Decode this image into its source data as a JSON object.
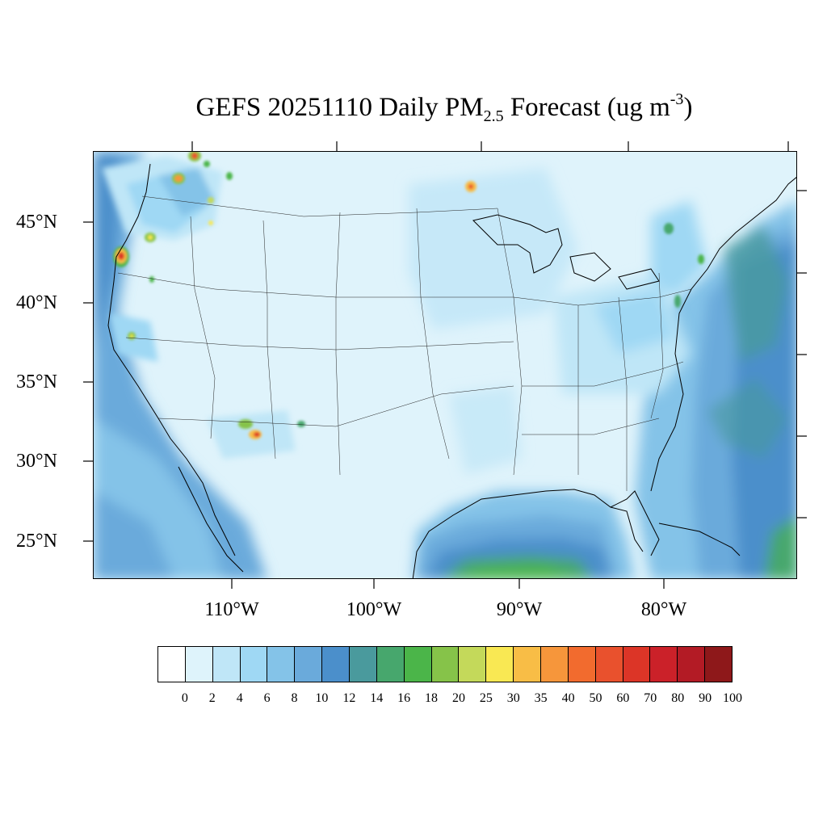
{
  "title": {
    "prefix": "GEFS 20251110 Daily PM",
    "subscript": "2.5",
    "middle": " Forecast (ug m",
    "superscript": "-3",
    "suffix": ")"
  },
  "map": {
    "projection": "Lambert conformal",
    "lat_labels": [
      "45°N",
      "40°N",
      "35°N",
      "30°N",
      "25°N"
    ],
    "lon_labels": [
      "110°W",
      "100°W",
      "90°W",
      "80°W"
    ],
    "hotspots": [
      {
        "name": "Northern California coast",
        "max_level": "60-70"
      },
      {
        "name": "Northern Idaho / Washington border",
        "max_level": "50-60"
      },
      {
        "name": "Northern Minnesota",
        "max_level": "40-50"
      },
      {
        "name": "Southeast Arizona",
        "max_level": "50-60"
      },
      {
        "name": "Gulf of Mexico",
        "max_level": "16-20"
      }
    ]
  },
  "colorbar": {
    "labels": [
      "0",
      "2",
      "4",
      "6",
      "8",
      "10",
      "12",
      "14",
      "16",
      "18",
      "20",
      "25",
      "30",
      "35",
      "40",
      "50",
      "60",
      "70",
      "80",
      "90",
      "100"
    ],
    "colors": [
      "#ffffff",
      "#def3fb",
      "#bfe6f7",
      "#9fd8f4",
      "#84c3e8",
      "#6aaadb",
      "#4b8fcb",
      "#4a9a9d",
      "#47a76d",
      "#4bb549",
      "#86c349",
      "#c4d95a",
      "#f9e853",
      "#f8bd46",
      "#f6963b",
      "#f26b2e",
      "#e9512d",
      "#dc3527",
      "#cb2129",
      "#b31b25",
      "#8e181a"
    ]
  }
}
